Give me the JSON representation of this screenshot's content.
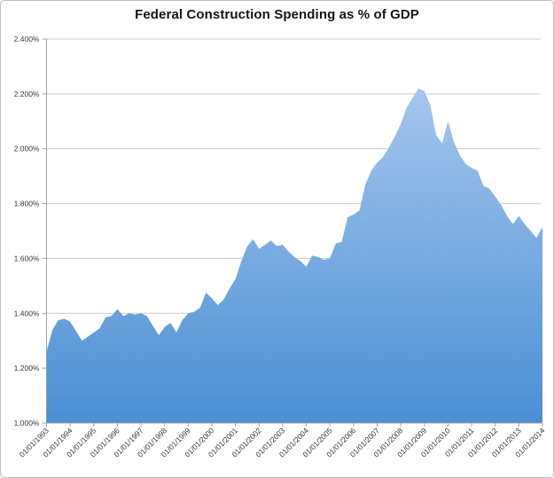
{
  "chart_data": {
    "type": "area",
    "title": "Federal Construction Spending as % of GDP",
    "xlabel": "",
    "ylabel": "",
    "ylim": [
      1.0,
      2.4
    ],
    "grid": true,
    "legend": "none",
    "x_frequency": "quarterly",
    "x_tick_labels": [
      "01/01/1993",
      "01/01/1994",
      "01/01/1995",
      "01/01/1996",
      "01/01/1997",
      "01/01/1998",
      "01/01/1999",
      "01/01/2000",
      "01/01/2001",
      "01/01/2002",
      "01/01/2003",
      "01/01/2004",
      "01/01/2005",
      "01/01/2006",
      "01/01/2007",
      "01/01/2008",
      "01/01/2009",
      "01/01/2010",
      "01/01/2011",
      "01/01/2012",
      "01/01/2013",
      "01/01/2014"
    ],
    "points_per_year": 4,
    "y_ticks": [
      1.0,
      1.2,
      1.4,
      1.6,
      1.8,
      2.0,
      2.2,
      2.4
    ],
    "y_tick_labels": [
      "1.000%",
      "1.200%",
      "1.400%",
      "1.600%",
      "1.800%",
      "2.000%",
      "2.200%",
      "2.400%"
    ],
    "values": [
      1.26,
      1.34,
      1.375,
      1.38,
      1.37,
      1.335,
      1.3,
      1.315,
      1.33,
      1.345,
      1.385,
      1.39,
      1.415,
      1.39,
      1.4,
      1.395,
      1.4,
      1.39,
      1.355,
      1.32,
      1.35,
      1.365,
      1.33,
      1.375,
      1.4,
      1.405,
      1.42,
      1.475,
      1.455,
      1.43,
      1.45,
      1.49,
      1.525,
      1.59,
      1.645,
      1.67,
      1.635,
      1.65,
      1.665,
      1.645,
      1.65,
      1.625,
      1.605,
      1.59,
      1.57,
      1.61,
      1.605,
      1.595,
      1.6,
      1.655,
      1.66,
      1.75,
      1.76,
      1.775,
      1.87,
      1.92,
      1.95,
      1.97,
      2.005,
      2.045,
      2.09,
      2.15,
      2.185,
      2.22,
      2.21,
      2.16,
      2.05,
      2.02,
      2.1,
      2.025,
      1.975,
      1.945,
      1.93,
      1.92,
      1.865,
      1.855,
      1.825,
      1.795,
      1.755,
      1.725,
      1.755,
      1.725,
      1.7,
      1.675,
      1.715
    ],
    "colors": {
      "area_top": "#b2cef2",
      "area_bottom": "#4a8fd3",
      "gridline": "#c9c9c9",
      "axis": "#9f9f9f",
      "label": "#3a3a3a",
      "title": "#151515"
    }
  }
}
